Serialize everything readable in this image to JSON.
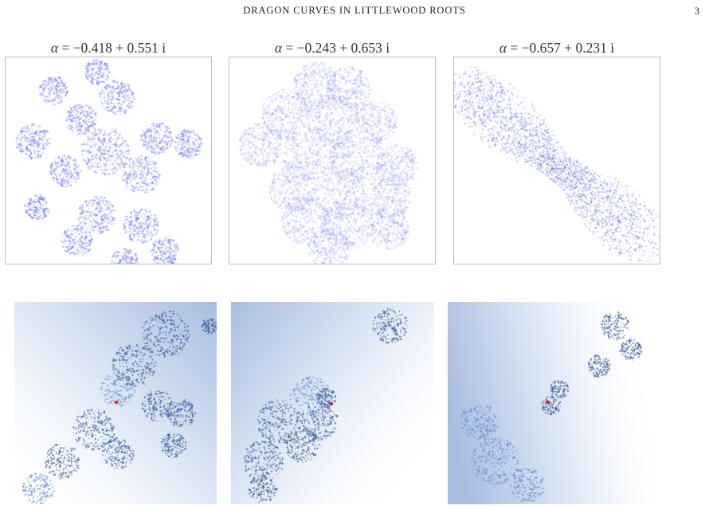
{
  "header": {
    "running_title": "DRAGON CURVES IN LITTLEWOOD ROOTS",
    "page_number": "3"
  },
  "figure": {
    "panels": [
      {
        "alpha_symbol": "α",
        "alpha_value": " = −0.418 + 0.551 i",
        "color": "#6a72e6"
      },
      {
        "alpha_symbol": "α",
        "alpha_value": " = −0.243 + 0.653 i",
        "color": "#8b93f0"
      },
      {
        "alpha_symbol": "α",
        "alpha_value": " = −0.657 + 0.231 i",
        "color": "#5b66d8"
      }
    ],
    "zoom_colors": {
      "dark": "#2d4f8f",
      "mid": "#5f87c8",
      "light": "#c8d8ef",
      "marker": "#d62020"
    }
  }
}
